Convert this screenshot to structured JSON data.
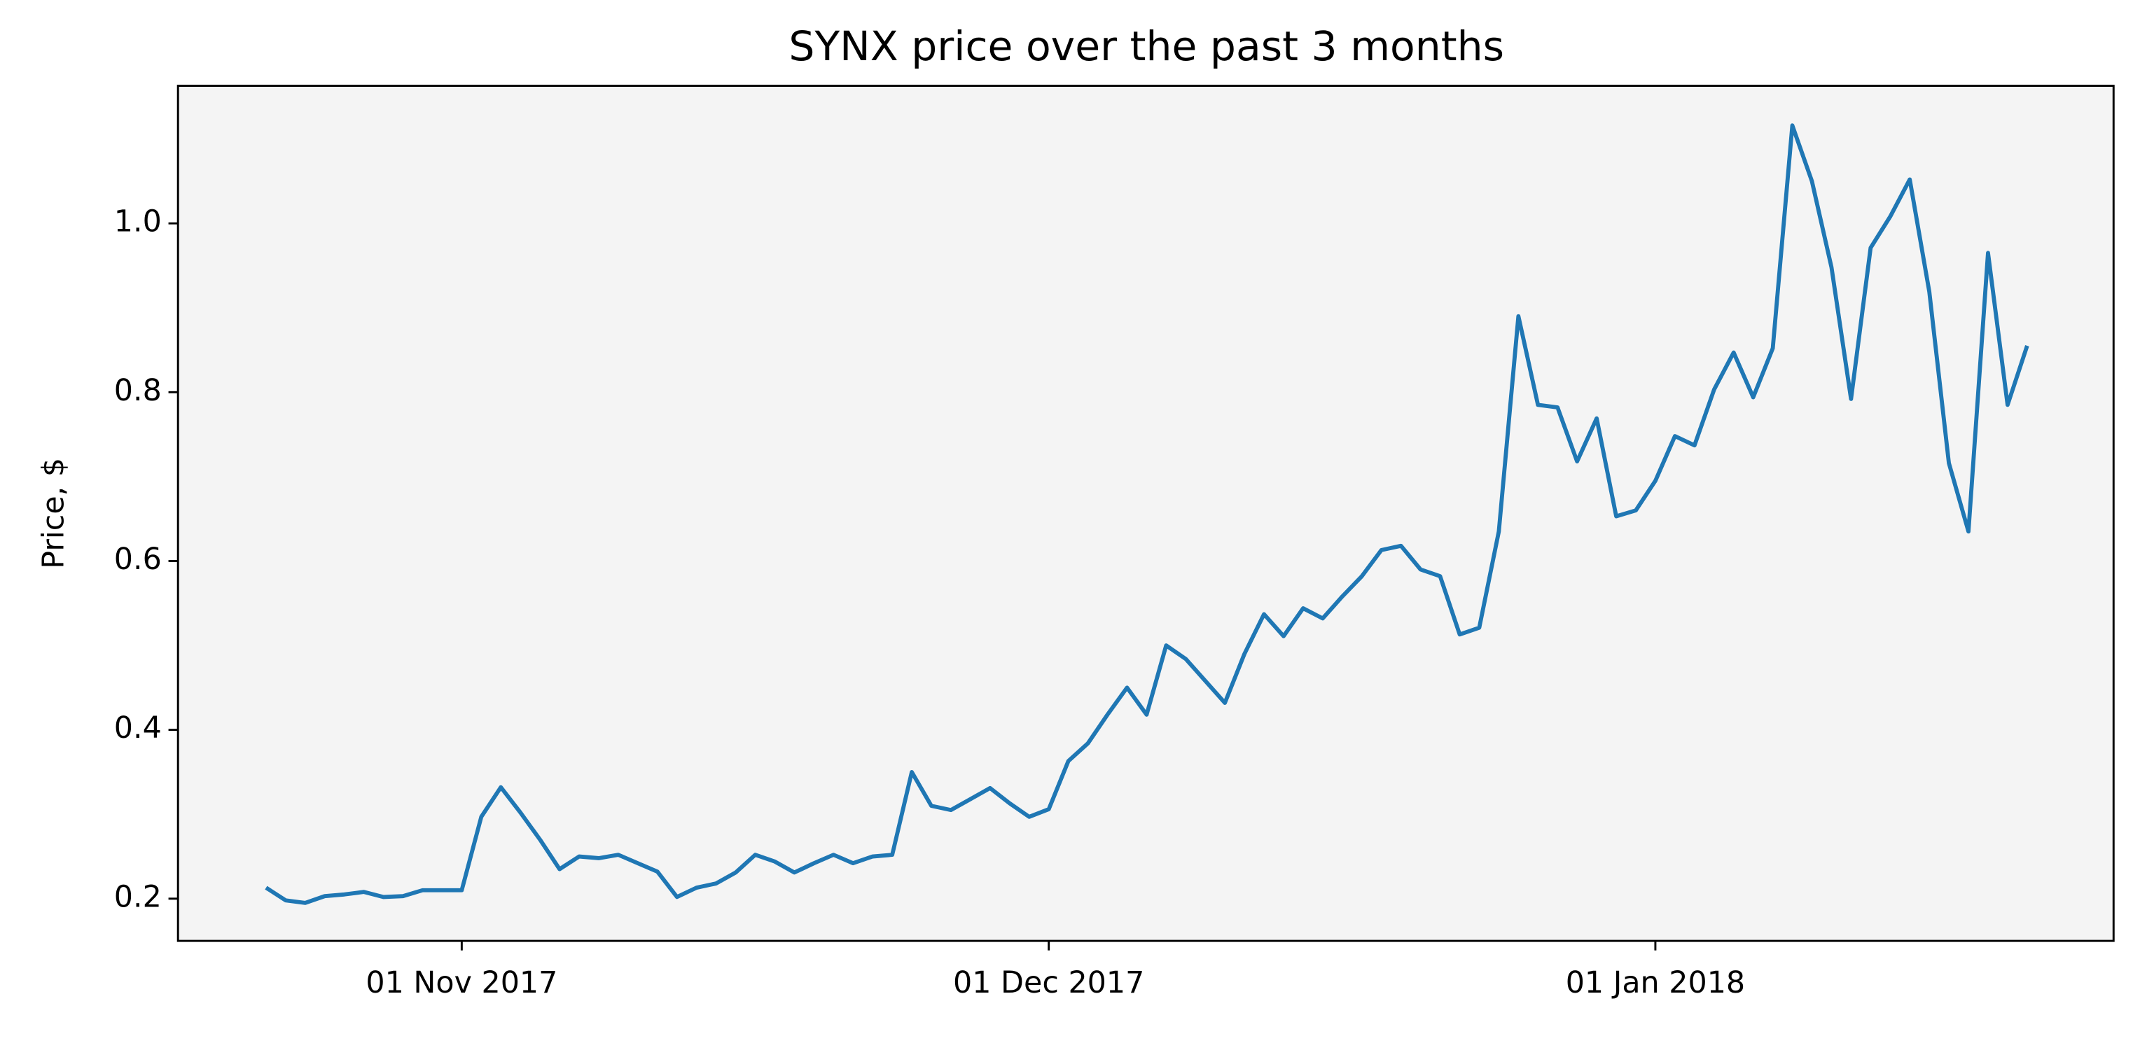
{
  "chart_data": {
    "type": "line",
    "title": "SYNX price over the past 3 months",
    "y_label": "Price, $",
    "x": [
      "2017-10-22",
      "2017-10-23",
      "2017-10-24",
      "2017-10-25",
      "2017-10-26",
      "2017-10-27",
      "2017-10-28",
      "2017-10-29",
      "2017-10-30",
      "2017-10-31",
      "2017-11-01",
      "2017-11-02",
      "2017-11-03",
      "2017-11-04",
      "2017-11-05",
      "2017-11-06",
      "2017-11-07",
      "2017-11-08",
      "2017-11-09",
      "2017-11-10",
      "2017-11-11",
      "2017-11-12",
      "2017-11-13",
      "2017-11-14",
      "2017-11-15",
      "2017-11-16",
      "2017-11-17",
      "2017-11-18",
      "2017-11-19",
      "2017-11-20",
      "2017-11-21",
      "2017-11-22",
      "2017-11-23",
      "2017-11-24",
      "2017-11-25",
      "2017-11-26",
      "2017-11-27",
      "2017-11-28",
      "2017-11-29",
      "2017-11-30",
      "2017-12-01",
      "2017-12-02",
      "2017-12-03",
      "2017-12-04",
      "2017-12-05",
      "2017-12-06",
      "2017-12-07",
      "2017-12-08",
      "2017-12-09",
      "2017-12-10",
      "2017-12-11",
      "2017-12-12",
      "2017-12-13",
      "2017-12-14",
      "2017-12-15",
      "2017-12-16",
      "2017-12-17",
      "2017-12-18",
      "2017-12-19",
      "2017-12-20",
      "2017-12-21",
      "2017-12-22",
      "2017-12-23",
      "2017-12-24",
      "2017-12-25",
      "2017-12-26",
      "2017-12-27",
      "2017-12-28",
      "2017-12-29",
      "2017-12-30",
      "2017-12-31",
      "2018-01-01",
      "2018-01-02",
      "2018-01-03",
      "2018-01-04",
      "2018-01-05",
      "2018-01-06",
      "2018-01-07",
      "2018-01-08",
      "2018-01-09",
      "2018-01-10",
      "2018-01-11",
      "2018-01-12",
      "2018-01-13",
      "2018-01-14",
      "2018-01-15",
      "2018-01-16",
      "2018-01-17",
      "2018-01-18",
      "2018-01-19",
      "2018-01-20"
    ],
    "series": [
      {
        "name": "SYNX",
        "color": "#1f77b4",
        "values": [
          0.213,
          0.198,
          0.195,
          0.203,
          0.205,
          0.208,
          0.202,
          0.203,
          0.21,
          0.21,
          0.21,
          0.297,
          0.332,
          0.302,
          0.27,
          0.235,
          0.25,
          0.248,
          0.252,
          0.242,
          0.232,
          0.202,
          0.213,
          0.218,
          0.231,
          0.252,
          0.244,
          0.231,
          0.242,
          0.252,
          0.242,
          0.25,
          0.252,
          0.35,
          0.31,
          0.305,
          0.318,
          0.331,
          0.313,
          0.297,
          0.306,
          0.363,
          0.384,
          0.418,
          0.45,
          0.418,
          0.5,
          0.484,
          0.458,
          0.432,
          0.49,
          0.537,
          0.511,
          0.544,
          0.532,
          0.558,
          0.582,
          0.613,
          0.618,
          0.59,
          0.582,
          0.513,
          0.521,
          0.635,
          0.89,
          0.785,
          0.782,
          0.718,
          0.769,
          0.653,
          0.66,
          0.695,
          0.748,
          0.737,
          0.803,
          0.847,
          0.794,
          0.852,
          1.116,
          1.05,
          0.948,
          0.792,
          0.971,
          1.008,
          1.052,
          0.919,
          0.716,
          0.635,
          0.965,
          0.785,
          0.855
        ]
      }
    ],
    "xlim": [
      "2017-10-17T12:00:00Z",
      "2018-01-24T10:00:00Z"
    ],
    "xticks": [
      {
        "value": "2017-11-01",
        "label": "01 Nov 2017"
      },
      {
        "value": "2017-12-01",
        "label": "01 Dec 2017"
      },
      {
        "value": "2018-01-01",
        "label": "01 Jan 2018"
      }
    ],
    "ylim": [
      0.15,
      1.163
    ],
    "yticks": [
      {
        "value": 0.2,
        "label": "0.2"
      },
      {
        "value": 0.4,
        "label": "0.4"
      },
      {
        "value": 0.6,
        "label": "0.6"
      },
      {
        "value": 0.8,
        "label": "0.8"
      },
      {
        "value": 1.0,
        "label": "1.0"
      }
    ],
    "background": "#f4f4f4",
    "grid": false
  }
}
